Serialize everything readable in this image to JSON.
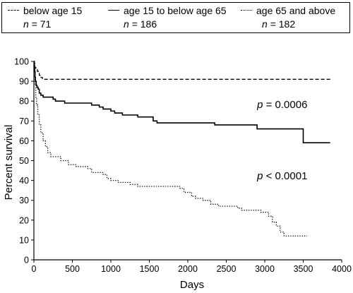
{
  "legend": [
    {
      "style": "dashed",
      "label": "below age 15",
      "n_prefix": "n",
      "n_value": "= 71"
    },
    {
      "style": "solid",
      "label": "age 15 to below age 65",
      "n_prefix": "n",
      "n_value": "= 186"
    },
    {
      "style": "dotted",
      "label": "age 65 and above",
      "n_prefix": "n",
      "n_value": "= 182"
    }
  ],
  "chart_data": {
    "type": "line",
    "xlabel": "Days",
    "ylabel": "Percent survival",
    "xlim": [
      0,
      4000
    ],
    "ylim": [
      0,
      100
    ],
    "xticks": [
      0,
      500,
      1000,
      1500,
      2000,
      2500,
      3000,
      3500,
      4000
    ],
    "yticks": [
      0,
      10,
      20,
      30,
      40,
      50,
      60,
      70,
      80,
      90,
      100
    ],
    "grid": false,
    "step": true,
    "series": [
      {
        "name": "below age 15",
        "style": "dashed",
        "points": [
          [
            0,
            100
          ],
          [
            5,
            99
          ],
          [
            12,
            97
          ],
          [
            25,
            96
          ],
          [
            45,
            95
          ],
          [
            70,
            93
          ],
          [
            90,
            92
          ],
          [
            110,
            91
          ],
          [
            3850,
            91
          ]
        ]
      },
      {
        "name": "age 15 to below age 65",
        "style": "solid",
        "points": [
          [
            0,
            100
          ],
          [
            5,
            98
          ],
          [
            10,
            95
          ],
          [
            15,
            92
          ],
          [
            20,
            90
          ],
          [
            30,
            88
          ],
          [
            40,
            87
          ],
          [
            55,
            86
          ],
          [
            70,
            84
          ],
          [
            90,
            83
          ],
          [
            120,
            82
          ],
          [
            200,
            82
          ],
          [
            250,
            81
          ],
          [
            280,
            80
          ],
          [
            350,
            80
          ],
          [
            400,
            79
          ],
          [
            700,
            79
          ],
          [
            750,
            78
          ],
          [
            850,
            77
          ],
          [
            900,
            76
          ],
          [
            1000,
            75
          ],
          [
            1050,
            74
          ],
          [
            1150,
            73
          ],
          [
            1300,
            73
          ],
          [
            1350,
            72
          ],
          [
            1500,
            72
          ],
          [
            1550,
            70
          ],
          [
            1600,
            69
          ],
          [
            2350,
            69
          ],
          [
            2350,
            68
          ],
          [
            2900,
            68
          ],
          [
            2900,
            66
          ],
          [
            3500,
            66
          ],
          [
            3500,
            59
          ],
          [
            3850,
            59
          ]
        ]
      },
      {
        "name": "age 65 and above",
        "style": "dotted",
        "points": [
          [
            0,
            100
          ],
          [
            5,
            95
          ],
          [
            15,
            88
          ],
          [
            25,
            82
          ],
          [
            35,
            78
          ],
          [
            50,
            73
          ],
          [
            70,
            68
          ],
          [
            90,
            64
          ],
          [
            120,
            60
          ],
          [
            150,
            57
          ],
          [
            180,
            54
          ],
          [
            220,
            52
          ],
          [
            300,
            52
          ],
          [
            350,
            50
          ],
          [
            450,
            48
          ],
          [
            550,
            47
          ],
          [
            700,
            46
          ],
          [
            750,
            44
          ],
          [
            900,
            43
          ],
          [
            950,
            41
          ],
          [
            1000,
            40
          ],
          [
            1100,
            39
          ],
          [
            1250,
            38
          ],
          [
            1350,
            37
          ],
          [
            1800,
            37
          ],
          [
            1900,
            36
          ],
          [
            1950,
            34
          ],
          [
            2050,
            32
          ],
          [
            2100,
            31
          ],
          [
            2200,
            30
          ],
          [
            2300,
            28
          ],
          [
            2400,
            27
          ],
          [
            2650,
            26
          ],
          [
            2700,
            25
          ],
          [
            2950,
            24
          ],
          [
            3050,
            22
          ],
          [
            3100,
            19
          ],
          [
            3150,
            17
          ],
          [
            3200,
            14
          ],
          [
            3250,
            12
          ],
          [
            3550,
            12
          ]
        ]
      }
    ],
    "annotations": [
      {
        "text": "p = 0.0006",
        "x": 2900,
        "y": 76.5
      },
      {
        "text": "p < 0.0001",
        "x": 2900,
        "y": 40.5
      }
    ]
  }
}
